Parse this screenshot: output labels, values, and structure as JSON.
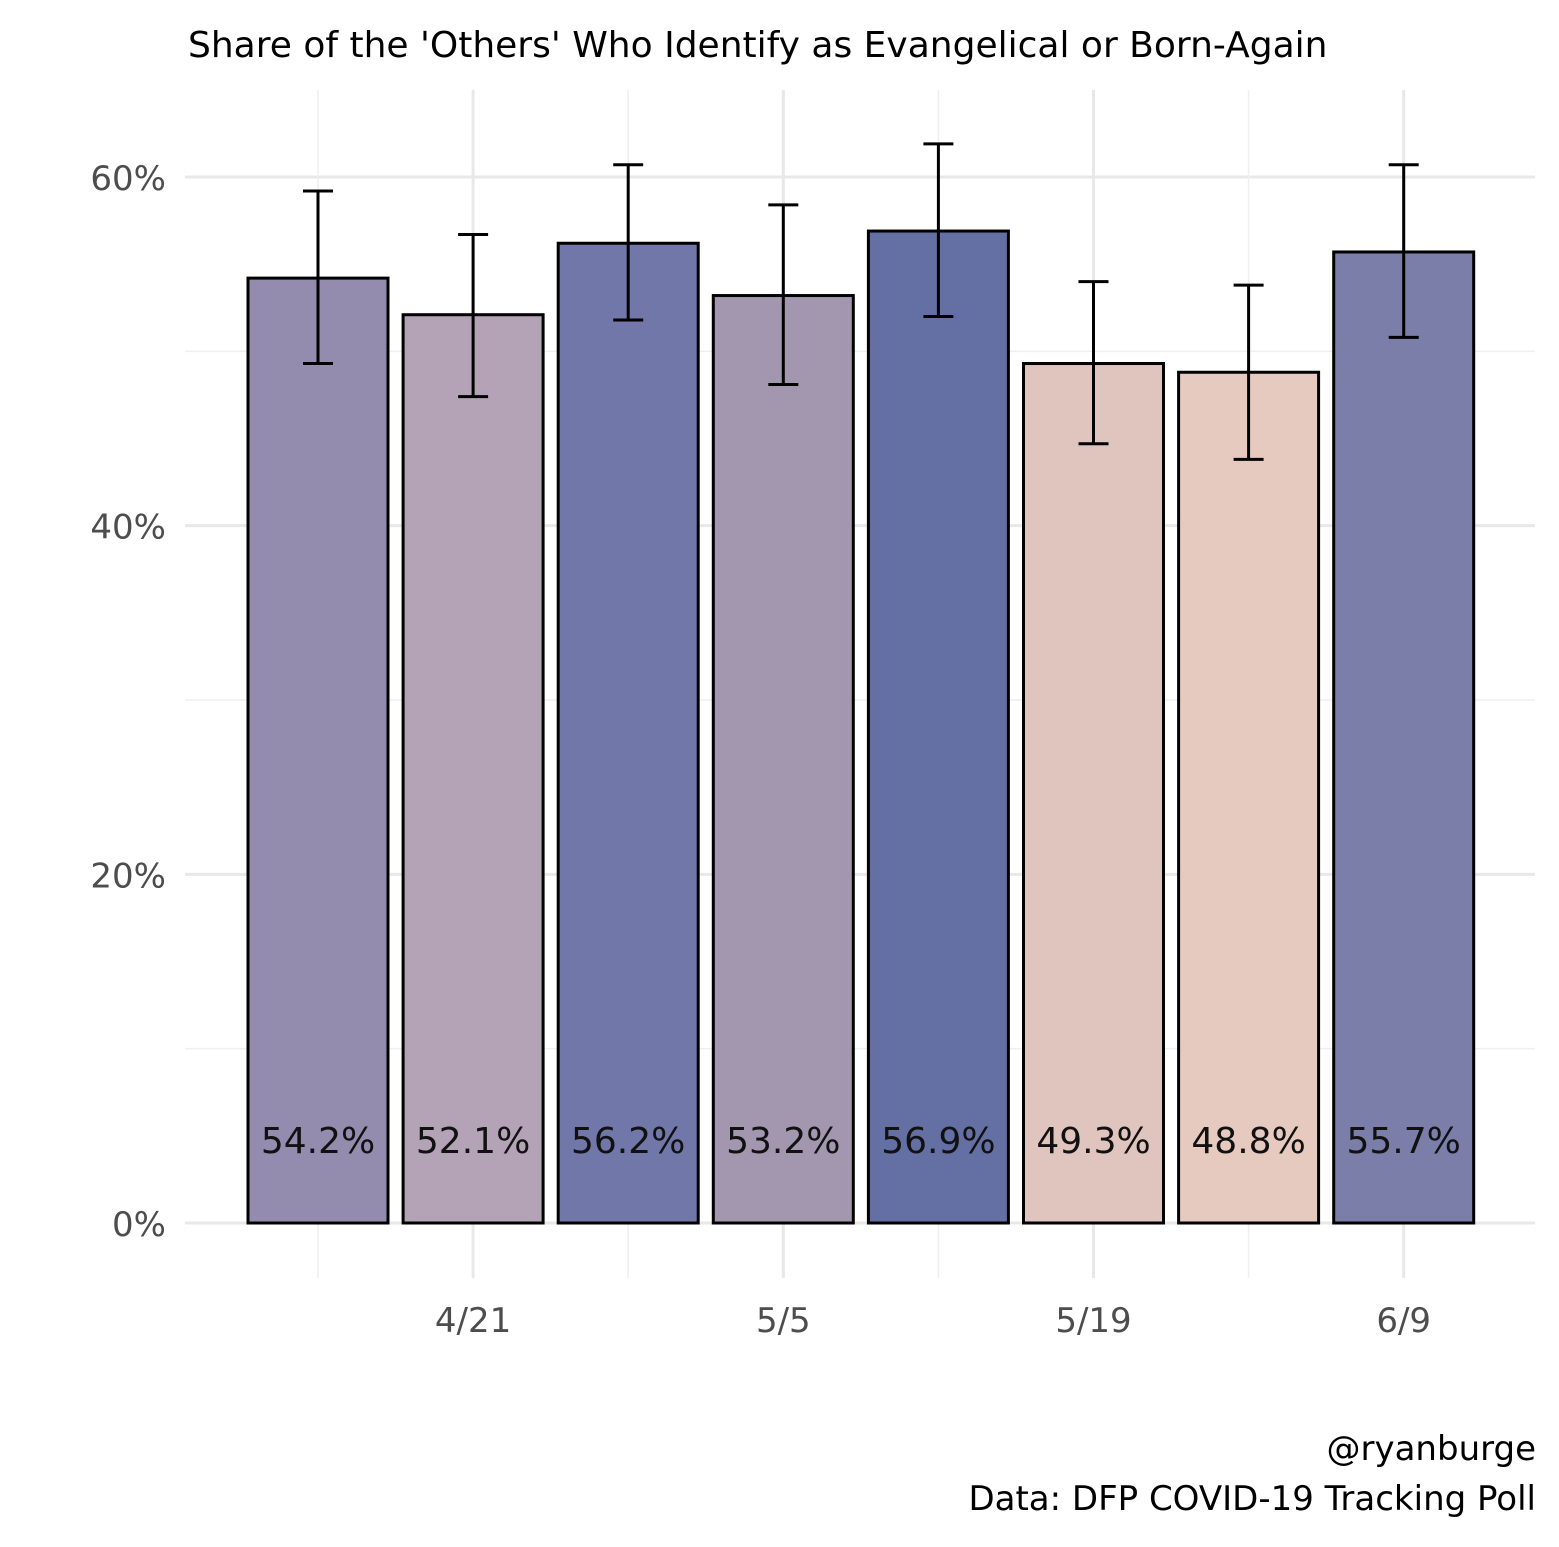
{
  "chart_data": {
    "type": "bar",
    "title": "Share of the 'Others' Who Identify as Evangelical or Born-Again",
    "xlabel": "",
    "ylabel": "",
    "ylim": [
      0,
      62
    ],
    "y_ticks": [
      0,
      20,
      40,
      60
    ],
    "y_tick_labels": [
      "0%",
      "20%",
      "40%",
      "60%"
    ],
    "x_tick_labels": [
      "",
      "4/21",
      "",
      "5/5",
      "",
      "5/19",
      "",
      "6/9"
    ],
    "values": [
      54.2,
      52.1,
      56.2,
      53.2,
      56.9,
      49.3,
      48.8,
      55.7
    ],
    "value_labels": [
      "54.2%",
      "52.1%",
      "56.2%",
      "53.2%",
      "56.9%",
      "49.3%",
      "48.8%",
      "55.7%"
    ],
    "error_low": [
      49.3,
      47.4,
      51.8,
      48.1,
      52.0,
      44.7,
      43.8,
      50.8
    ],
    "error_high": [
      59.2,
      56.7,
      60.7,
      58.4,
      61.9,
      54.0,
      53.8,
      60.7
    ],
    "colors": [
      "#938cae",
      "#b4a3b6",
      "#7177a8",
      "#a397b0",
      "#6470a4",
      "#e0c5be",
      "#e6cabf",
      "#7a7ea8"
    ],
    "grid": true,
    "legend": "none"
  },
  "caption": {
    "author": "@ryanburge",
    "source": "Data: DFP COVID-19 Tracking Poll"
  }
}
